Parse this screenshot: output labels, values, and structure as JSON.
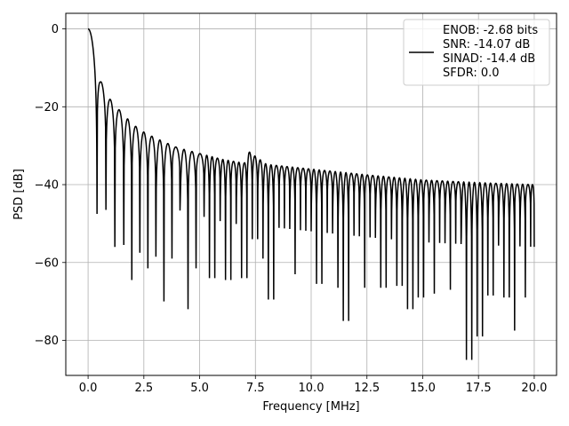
{
  "chart_data": {
    "type": "line",
    "title": "",
    "xlabel": "Frequency [MHz]",
    "ylabel": "PSD [dB]",
    "xlim": [
      -1.0,
      21.0
    ],
    "ylim": [
      -89,
      4
    ],
    "xticks": [
      0.0,
      2.5,
      5.0,
      7.5,
      10.0,
      12.5,
      15.0,
      17.5,
      20.0
    ],
    "xtick_labels": [
      "0.0",
      "2.5",
      "5.0",
      "7.5",
      "10.0",
      "12.5",
      "15.0",
      "17.5",
      "20.0"
    ],
    "yticks": [
      0,
      -20,
      -40,
      -60,
      -80
    ],
    "ytick_labels": [
      "0",
      "−20",
      "−40",
      "−60",
      "−80"
    ],
    "grid": true,
    "legend_position": "top-right",
    "line_color": "#000000",
    "series": [
      {
        "legend_lines": [
          "ENOB: -2.68 bits",
          "SNR: -14.07 dB",
          "SINAD: -14.4 dB",
          "SFDR: 0.0"
        ],
        "description": "sinc-like spectrum starting at 0 dB at 0 MHz, decaying envelope of lobes with deep nulls, floor around -40 dB",
        "envelope_points": [
          {
            "x": 0.0,
            "y": 0.0
          },
          {
            "x": 0.55,
            "y": -13.2
          },
          {
            "x": 0.95,
            "y": -17.8
          },
          {
            "x": 1.35,
            "y": -20.5
          },
          {
            "x": 2.0,
            "y": -24.5
          },
          {
            "x": 2.5,
            "y": -26.5
          },
          {
            "x": 3.0,
            "y": -28.0
          },
          {
            "x": 4.0,
            "y": -30.5
          },
          {
            "x": 5.0,
            "y": -32.0
          },
          {
            "x": 6.0,
            "y": -33.5
          },
          {
            "x": 7.0,
            "y": -34.5
          },
          {
            "x": 7.2,
            "y": -31.5
          },
          {
            "x": 8.0,
            "y": -34.8
          },
          {
            "x": 10.0,
            "y": -36.0
          },
          {
            "x": 12.5,
            "y": -37.5
          },
          {
            "x": 15.0,
            "y": -38.8
          },
          {
            "x": 17.5,
            "y": -39.5
          },
          {
            "x": 20.0,
            "y": -40.0
          }
        ],
        "nulls": [
          {
            "x": 0.4,
            "y": -47.5
          },
          {
            "x": 0.8,
            "y": -46.5
          },
          {
            "x": 1.2,
            "y": -56.0
          },
          {
            "x": 1.6,
            "y": -55.5
          },
          {
            "x": 1.95,
            "y": -64.5
          },
          {
            "x": 2.3,
            "y": -57.5
          },
          {
            "x": 2.75,
            "y": -61.5
          },
          {
            "x": 3.1,
            "y": -58.5
          },
          {
            "x": 3.5,
            "y": -70.0
          },
          {
            "x": 3.9,
            "y": -59.0
          },
          {
            "x": 4.3,
            "y": -72.0
          },
          {
            "x": 4.9,
            "y": -61.5
          },
          {
            "x": 5.6,
            "y": -64.0
          },
          {
            "x": 6.3,
            "y": -64.5
          },
          {
            "x": 7.0,
            "y": -64.0
          },
          {
            "x": 7.5,
            "y": -54.0
          },
          {
            "x": 7.8,
            "y": -59.0
          },
          {
            "x": 8.2,
            "y": -69.5
          },
          {
            "x": 9.3,
            "y": -63.0
          },
          {
            "x": 10.4,
            "y": -65.5
          },
          {
            "x": 11.2,
            "y": -66.5
          },
          {
            "x": 11.6,
            "y": -75.0
          },
          {
            "x": 12.4,
            "y": -66.5
          },
          {
            "x": 13.3,
            "y": -66.5
          },
          {
            "x": 14.0,
            "y": -66.0
          },
          {
            "x": 14.4,
            "y": -72.0
          },
          {
            "x": 14.9,
            "y": -69.0
          },
          {
            "x": 15.5,
            "y": -68.0
          },
          {
            "x": 16.2,
            "y": -67.0
          },
          {
            "x": 17.1,
            "y": -85.0
          },
          {
            "x": 17.5,
            "y": -79.0
          },
          {
            "x": 18.0,
            "y": -68.5
          },
          {
            "x": 18.8,
            "y": -69.0
          },
          {
            "x": 19.0,
            "y": -77.5
          },
          {
            "x": 19.6,
            "y": -69.0
          }
        ]
      }
    ]
  }
}
